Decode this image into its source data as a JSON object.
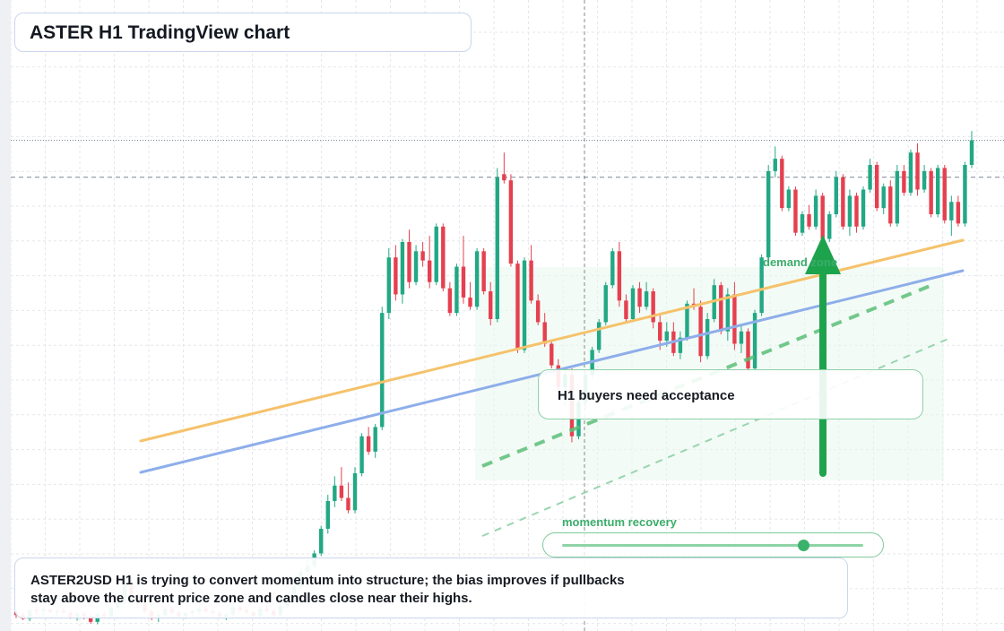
{
  "title": "ASTER H1 TradingView chart",
  "callout_text": "H1 buyers need acceptance",
  "zone_label": "demand zone",
  "momentum_label": "momentum recovery",
  "momentum_level": 0.8,
  "description": "ASTER2USD H1 is trying to convert momentum into structure; the bias improves if pullbacks stay above the current price zone and candles close near their highs.",
  "colors": {
    "up": "#22a884",
    "down": "#e5404f",
    "trend_orange": "#f5c26b",
    "trend_blue": "#8eaeea",
    "accent_green": "#1ea34d",
    "zone_fill": "#eaf7ee"
  },
  "chart_data": {
    "type": "candlestick",
    "symbol": "ASTER2USD",
    "timeframe": "H1",
    "ylim": [
      0,
      100
    ],
    "reference_levels": {
      "dotted": 79,
      "dashed": 73
    },
    "candles": [
      [
        2.5,
        2.7,
        1.5,
        2.0
      ],
      [
        2.0,
        2.4,
        1.2,
        1.4
      ],
      [
        1.4,
        3.0,
        1.0,
        2.8
      ],
      [
        2.8,
        3.4,
        2.0,
        2.6
      ],
      [
        2.6,
        3.2,
        1.8,
        2.9
      ],
      [
        2.9,
        3.1,
        2.3,
        2.5
      ],
      [
        2.5,
        3.0,
        1.9,
        2.7
      ],
      [
        2.7,
        3.2,
        2.2,
        2.4
      ],
      [
        2.4,
        2.8,
        1.4,
        1.6
      ],
      [
        1.6,
        2.6,
        1.1,
        2.2
      ],
      [
        2.2,
        2.5,
        1.3,
        1.8
      ],
      [
        1.8,
        2.3,
        0.6,
        0.9
      ],
      [
        0.9,
        2.4,
        0.5,
        2.1
      ],
      [
        2.1,
        2.6,
        1.6,
        1.8
      ],
      [
        1.8,
        3.5,
        1.5,
        3.2
      ],
      [
        3.2,
        4.8,
        2.8,
        4.2
      ],
      [
        4.2,
        7.5,
        3.8,
        6.8
      ],
      [
        6.8,
        8.5,
        4.5,
        5.0
      ],
      [
        5.0,
        5.6,
        3.5,
        3.9
      ],
      [
        3.9,
        4.3,
        2.2,
        2.6
      ],
      [
        2.6,
        3.0,
        1.2,
        1.7
      ],
      [
        1.7,
        2.5,
        0.9,
        2.0
      ],
      [
        2.0,
        3.3,
        1.8,
        3.0
      ],
      [
        3.0,
        3.4,
        2.1,
        2.4
      ],
      [
        2.4,
        2.8,
        1.5,
        1.8
      ],
      [
        1.8,
        2.6,
        1.4,
        2.3
      ],
      [
        2.3,
        2.9,
        1.9,
        2.6
      ],
      [
        2.6,
        3.3,
        2.2,
        3.0
      ],
      [
        3.0,
        3.5,
        2.3,
        2.6
      ],
      [
        2.6,
        3.0,
        2.0,
        2.3
      ],
      [
        2.3,
        2.7,
        1.5,
        1.8
      ],
      [
        1.8,
        2.4,
        1.2,
        2.1
      ],
      [
        2.1,
        3.6,
        1.8,
        3.3
      ],
      [
        3.3,
        3.7,
        2.5,
        2.8
      ],
      [
        2.8,
        3.2,
        2.1,
        2.4
      ],
      [
        2.4,
        2.8,
        1.6,
        1.9
      ],
      [
        1.9,
        3.3,
        1.5,
        3.0
      ],
      [
        3.0,
        3.5,
        2.4,
        2.7
      ],
      [
        2.7,
        3.0,
        1.8,
        2.0
      ],
      [
        2.0,
        3.8,
        1.7,
        3.5
      ],
      [
        3.5,
        5.0,
        3.2,
        4.6
      ],
      [
        4.6,
        7.0,
        4.3,
        6.6
      ],
      [
        6.6,
        9.5,
        6.2,
        9.0
      ],
      [
        9.0,
        11.0,
        8.5,
        10.0
      ],
      [
        10.0,
        12.5,
        9.5,
        12.0
      ],
      [
        12.0,
        16.5,
        11.6,
        16.0
      ],
      [
        16.0,
        21.5,
        15.2,
        20.5
      ],
      [
        20.5,
        24.5,
        19.5,
        23.0
      ],
      [
        23.0,
        26.0,
        20.5,
        21.0
      ],
      [
        21.0,
        23.5,
        18.5,
        19.0
      ],
      [
        19.0,
        26.0,
        18.5,
        25.0
      ],
      [
        25.0,
        31.5,
        24.5,
        31.0
      ],
      [
        31.0,
        32.5,
        28.0,
        28.5
      ],
      [
        28.5,
        33.0,
        27.5,
        32.5
      ],
      [
        32.5,
        52.0,
        32.0,
        51.0
      ],
      [
        51.0,
        61.5,
        50.0,
        60.0
      ],
      [
        60.0,
        62.0,
        53.0,
        54.0
      ],
      [
        54.0,
        63.0,
        52.5,
        62.5
      ],
      [
        62.5,
        64.5,
        55.0,
        56.0
      ],
      [
        56.0,
        62.0,
        55.5,
        61.0
      ],
      [
        61.0,
        62.5,
        58.5,
        59.5
      ],
      [
        59.5,
        63.5,
        55.0,
        56.0
      ],
      [
        56.0,
        65.5,
        55.5,
        65.0
      ],
      [
        65.0,
        65.5,
        54.5,
        55.0
      ],
      [
        55.0,
        56.0,
        50.5,
        51.0
      ],
      [
        51.0,
        59.0,
        50.5,
        58.5
      ],
      [
        58.5,
        63.5,
        52.5,
        53.5
      ],
      [
        53.5,
        56.0,
        51.5,
        52.0
      ],
      [
        52.0,
        61.5,
        51.5,
        61.0
      ],
      [
        61.0,
        61.5,
        54.0,
        54.5
      ],
      [
        54.5,
        56.0,
        49.0,
        50.0
      ],
      [
        50.0,
        74.5,
        49.5,
        73.0
      ],
      [
        73.5,
        77.0,
        72.0,
        72.5
      ],
      [
        72.5,
        73.5,
        58.5,
        59.0
      ],
      [
        59.0,
        59.5,
        44.5,
        45.0
      ],
      [
        45.0,
        60.0,
        44.5,
        59.5
      ],
      [
        59.5,
        62.0,
        52.5,
        53.0
      ],
      [
        53.0,
        54.0,
        49.0,
        49.5
      ],
      [
        49.5,
        51.0,
        45.5,
        46.0
      ],
      [
        46.0,
        46.5,
        42.0,
        42.5
      ],
      [
        42.5,
        43.5,
        38.5,
        39.0
      ],
      [
        39.0,
        42.0,
        36.0,
        41.0
      ],
      [
        41.0,
        42.0,
        30.0,
        31.0
      ],
      [
        31.0,
        37.0,
        30.5,
        36.5
      ],
      [
        36.5,
        41.5,
        35.5,
        41.0
      ],
      [
        41.0,
        45.5,
        40.5,
        45.0
      ],
      [
        45.0,
        50.0,
        44.5,
        49.5
      ],
      [
        49.5,
        56.0,
        49.0,
        55.5
      ],
      [
        55.5,
        61.5,
        55.0,
        61.0
      ],
      [
        61.0,
        62.5,
        52.0,
        53.0
      ],
      [
        53.0,
        54.0,
        49.5,
        50.0
      ],
      [
        50.0,
        55.5,
        49.5,
        55.0
      ],
      [
        55.0,
        56.0,
        51.0,
        52.0
      ],
      [
        52.0,
        56.0,
        51.5,
        54.5
      ],
      [
        54.5,
        55.0,
        48.5,
        49.5
      ],
      [
        49.5,
        51.0,
        45.0,
        46.5
      ],
      [
        46.5,
        49.5,
        45.5,
        48.0
      ],
      [
        48.0,
        49.5,
        44.0,
        44.5
      ],
      [
        44.5,
        48.0,
        43.5,
        47.0
      ],
      [
        47.0,
        53.0,
        46.5,
        52.5
      ],
      [
        52.5,
        55.0,
        51.5,
        52.0
      ],
      [
        52.0,
        53.0,
        43.0,
        44.0
      ],
      [
        44.0,
        51.0,
        43.5,
        50.0
      ],
      [
        50.0,
        56.5,
        49.5,
        55.5
      ],
      [
        55.5,
        56.0,
        47.5,
        48.0
      ],
      [
        48.0,
        55.0,
        46.5,
        54.0
      ],
      [
        54.0,
        56.0,
        45.0,
        46.0
      ],
      [
        46.0,
        49.0,
        44.5,
        48.0
      ],
      [
        48.0,
        48.5,
        41.5,
        42.0
      ],
      [
        42.0,
        51.5,
        41.5,
        51.0
      ],
      [
        51.0,
        60.5,
        50.5,
        60.0
      ],
      [
        60.0,
        75.0,
        59.5,
        74.0
      ],
      [
        74.0,
        78.0,
        73.0,
        76.0
      ],
      [
        76.0,
        76.5,
        67.5,
        68.0
      ],
      [
        68.0,
        71.5,
        67.5,
        71.0
      ],
      [
        71.0,
        71.5,
        63.5,
        64.0
      ],
      [
        64.0,
        67.5,
        63.5,
        67.0
      ],
      [
        67.0,
        68.5,
        64.5,
        65.0
      ],
      [
        65.0,
        71.0,
        64.5,
        70.0
      ],
      [
        70.0,
        70.5,
        62.0,
        63.0
      ],
      [
        63.0,
        67.5,
        62.5,
        67.0
      ],
      [
        67.0,
        74.0,
        66.5,
        73.0
      ],
      [
        73.0,
        73.5,
        64.5,
        65.0
      ],
      [
        65.0,
        71.0,
        63.5,
        70.0
      ],
      [
        70.0,
        70.5,
        64.0,
        65.0
      ],
      [
        65.0,
        71.5,
        64.5,
        71.0
      ],
      [
        71.0,
        76.0,
        70.5,
        75.0
      ],
      [
        75.0,
        75.5,
        67.5,
        68.0
      ],
      [
        68.0,
        72.0,
        67.0,
        71.5
      ],
      [
        71.5,
        72.5,
        65.0,
        65.5
      ],
      [
        65.5,
        75.0,
        65.0,
        74.0
      ],
      [
        74.0,
        75.0,
        70.0,
        70.5
      ],
      [
        70.5,
        77.5,
        70.0,
        77.0
      ],
      [
        77.0,
        78.5,
        70.0,
        71.0
      ],
      [
        71.0,
        75.0,
        70.5,
        74.0
      ],
      [
        74.0,
        74.5,
        66.5,
        67.0
      ],
      [
        67.0,
        75.0,
        66.5,
        74.5
      ],
      [
        74.5,
        75.0,
        65.5,
        66.0
      ],
      [
        66.0,
        70.0,
        63.5,
        69.0
      ],
      [
        69.0,
        70.0,
        65.0,
        65.5
      ],
      [
        65.5,
        75.5,
        65.0,
        75.0
      ],
      [
        75.0,
        80.5,
        74.5,
        79.0
      ]
    ]
  }
}
